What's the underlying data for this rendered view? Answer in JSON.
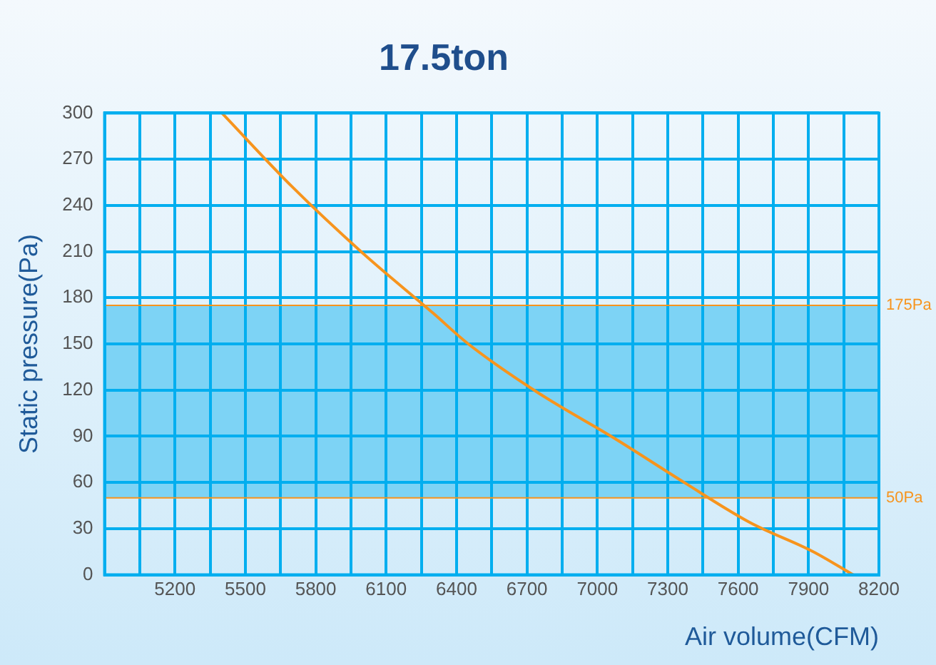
{
  "chart_data": {
    "type": "line",
    "title": "17.5ton",
    "xlabel": "Air volume(CFM)",
    "ylabel": "Static pressure(Pa)",
    "x": [
      5400,
      5700,
      6000,
      6300,
      6450,
      6750,
      7080,
      7370,
      7650,
      7920,
      8090
    ],
    "series": [
      {
        "color": "#f7941d",
        "values": [
          300,
          252,
          209,
          170,
          150,
          118,
          88,
          60,
          34,
          15,
          0
        ]
      }
    ],
    "xlim": [
      4900,
      8200
    ],
    "xticks": [
      {
        "value": 4900,
        "label": null
      },
      {
        "value": 5050,
        "label": null
      },
      5200,
      {
        "value": 5350,
        "label": null
      },
      5500,
      {
        "value": 5650,
        "label": null
      },
      5800,
      {
        "value": 5950,
        "label": null
      },
      6100,
      {
        "value": 6250,
        "label": null
      },
      6400,
      {
        "value": 6550,
        "label": null
      },
      6700,
      {
        "value": 6850,
        "label": null
      },
      7000,
      {
        "value": 7150,
        "label": null
      },
      7300,
      {
        "value": 7450,
        "label": null
      },
      7600,
      {
        "value": 7750,
        "label": null
      },
      7900,
      {
        "value": 8050,
        "label": null
      },
      8200
    ],
    "ylim": [
      0,
      300
    ],
    "yticks": [
      0,
      30,
      60,
      90,
      120,
      150,
      180,
      210,
      240,
      270,
      300
    ],
    "bands": [
      {
        "axis": "y",
        "from": 50,
        "to": 175,
        "color": "#7dd3f5"
      }
    ],
    "ref_lines": [
      {
        "axis": "y",
        "value": 175,
        "label": "175Pa",
        "color": "#f7941d"
      },
      {
        "axis": "y",
        "value": 50,
        "label": "50Pa",
        "color": "#f7941d"
      }
    ],
    "grid": true,
    "legend": false,
    "marker": "none",
    "line_style": "solid"
  }
}
